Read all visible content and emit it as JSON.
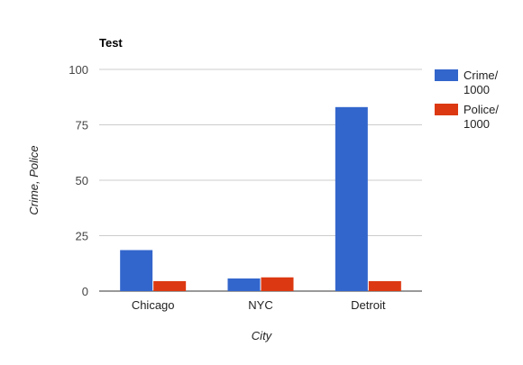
{
  "chart_data": {
    "type": "bar",
    "title": "Test",
    "xlabel": "City",
    "ylabel": "Crime, Police",
    "categories": [
      "Chicago",
      "NYC",
      "Detroit"
    ],
    "series": [
      {
        "name": "Crime/ 1000",
        "name_lines": [
          "Crime/",
          "1000"
        ],
        "values": [
          18.5,
          5.7,
          83
        ],
        "color": "#3366cc"
      },
      {
        "name": "Police/ 1000",
        "name_lines": [
          "Police/",
          "1000"
        ],
        "values": [
          4.5,
          6.2,
          4.5
        ],
        "color": "#dc3912"
      }
    ],
    "ylim": [
      0,
      100
    ],
    "yticks": [
      0,
      25,
      50,
      75,
      100
    ],
    "grid": true,
    "legend_position": "right"
  }
}
